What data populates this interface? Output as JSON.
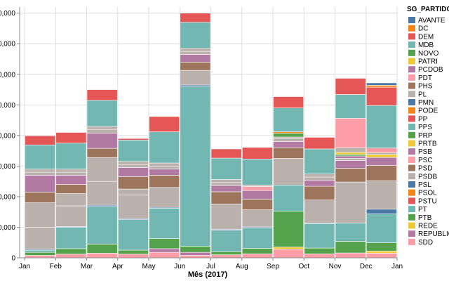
{
  "chart_data": {
    "type": "bar",
    "stacked": true,
    "xlabel": "Mês (2017)",
    "legend_title": "SG_PARTIDO",
    "legend_position": "right",
    "grid": true,
    "ylim": [
      0,
      82000
    ],
    "yticks": [
      0,
      10000,
      20000,
      30000,
      40000,
      50000,
      60000,
      70000,
      80000
    ],
    "ytick_labels": [
      "0",
      "0,000",
      "0,000",
      "0,000",
      "0,000",
      "0,000",
      "0,000",
      "0,000",
      "0,000"
    ],
    "months": [
      "Jan",
      "Feb",
      "Mar",
      "Apr",
      "May",
      "Jun",
      "Jul",
      "Aug",
      "Sep",
      "Oct",
      "Nov",
      "Dec"
    ],
    "x_labels": [
      "Jan",
      "Feb",
      "Mar",
      "Apr",
      "May",
      "Jun",
      "Jul",
      "Aug",
      "Sep",
      "Oct",
      "Nov",
      "Dec",
      "Jan"
    ],
    "parties": [
      {
        "name": "AVANTE",
        "color": "#4c78a8"
      },
      {
        "name": "DC",
        "color": "#f58518"
      },
      {
        "name": "DEM",
        "color": "#e45756"
      },
      {
        "name": "MDB",
        "color": "#72b7b2"
      },
      {
        "name": "NOVO",
        "color": "#54a24b"
      },
      {
        "name": "PATRI",
        "color": "#eeca3b"
      },
      {
        "name": "PCDOB",
        "color": "#b279a2"
      },
      {
        "name": "PDT",
        "color": "#ff9da6"
      },
      {
        "name": "PHS",
        "color": "#9d755d"
      },
      {
        "name": "PL",
        "color": "#bab0ac"
      },
      {
        "name": "PMN",
        "color": "#4c78a8"
      },
      {
        "name": "PODE",
        "color": "#f58518"
      },
      {
        "name": "PP",
        "color": "#e45756"
      },
      {
        "name": "PPS",
        "color": "#72b7b2"
      },
      {
        "name": "PRP",
        "color": "#54a24b"
      },
      {
        "name": "PRTB",
        "color": "#eeca3b"
      },
      {
        "name": "PSB",
        "color": "#b279a2"
      },
      {
        "name": "PSC",
        "color": "#ff9da6"
      },
      {
        "name": "PSD",
        "color": "#9d755d"
      },
      {
        "name": "PSDB",
        "color": "#bab0ac"
      },
      {
        "name": "PSL",
        "color": "#4c78a8"
      },
      {
        "name": "PSOL",
        "color": "#f58518"
      },
      {
        "name": "PSTU",
        "color": "#e45756"
      },
      {
        "name": "PT",
        "color": "#72b7b2"
      },
      {
        "name": "PTB",
        "color": "#54a24b"
      },
      {
        "name": "REDE",
        "color": "#eeca3b"
      },
      {
        "name": "REPUBLICANOS",
        "color": "#b279a2"
      },
      {
        "name": "SDD",
        "color": "#ff9da6"
      }
    ],
    "segments": [
      {
        "month": "Jan",
        "stack": [
          [
            "SDD",
            800
          ],
          [
            "PTB",
            1000
          ],
          [
            "PT",
            700
          ],
          [
            "PMN",
            300
          ],
          [
            "PSDB",
            7200
          ],
          [
            "PL",
            8000
          ],
          [
            "PHS",
            3500
          ],
          [
            "PSB",
            5500
          ],
          [
            "PL",
            1000
          ],
          [
            "PSDB",
            1000
          ],
          [
            "PPS",
            7900
          ],
          [
            "PP",
            3000
          ]
        ]
      },
      {
        "month": "Feb",
        "stack": [
          [
            "SDD",
            1200
          ],
          [
            "PTB",
            1800
          ],
          [
            "PT",
            7000
          ],
          [
            "PMN",
            200
          ],
          [
            "PSDB",
            6800
          ],
          [
            "PL",
            4000
          ],
          [
            "PHS",
            3000
          ],
          [
            "PSB",
            3000
          ],
          [
            "PL",
            1000
          ],
          [
            "PSDB",
            1000
          ],
          [
            "PPS",
            8500
          ],
          [
            "PP",
            3500
          ]
        ]
      },
      {
        "month": "Mar",
        "stack": [
          [
            "SDD",
            1500
          ],
          [
            "PTB",
            3000
          ],
          [
            "PT",
            12300
          ],
          [
            "PMN",
            400
          ],
          [
            "PSDB",
            7800
          ],
          [
            "PL",
            7800
          ],
          [
            "PHS",
            3000
          ],
          [
            "PSB",
            5000
          ],
          [
            "PL",
            1200
          ],
          [
            "PSDB",
            1000
          ],
          [
            "PPS",
            8500
          ],
          [
            "PP",
            3500
          ]
        ]
      },
      {
        "month": "Apr",
        "stack": [
          [
            "SDD",
            1200
          ],
          [
            "PTB",
            1300
          ],
          [
            "PT",
            10000
          ],
          [
            "PMN",
            300
          ],
          [
            "PSDB",
            7700
          ],
          [
            "PL",
            2000
          ],
          [
            "PHS",
            4000
          ],
          [
            "PSB",
            3000
          ],
          [
            "PL",
            1000
          ],
          [
            "PSDB",
            1000
          ],
          [
            "PPS",
            7000
          ],
          [
            "PP",
            500
          ]
        ]
      },
      {
        "month": "May",
        "stack": [
          [
            "SDD",
            1800
          ],
          [
            "PSB",
            1200
          ],
          [
            "PTB",
            3300
          ],
          [
            "PT",
            9900
          ],
          [
            "PMN",
            300
          ],
          [
            "PSDB",
            6500
          ],
          [
            "PHS",
            4000
          ],
          [
            "PSB",
            2000
          ],
          [
            "PL",
            1000
          ],
          [
            "PSDB",
            1000
          ],
          [
            "PPS",
            10200
          ],
          [
            "PP",
            5000
          ]
        ]
      },
      {
        "month": "Jun",
        "stack": [
          [
            "SDD",
            800
          ],
          [
            "PSB",
            1000
          ],
          [
            "PTB",
            2000
          ],
          [
            "PT",
            52200
          ],
          [
            "PMN",
            500
          ],
          [
            "PSDB",
            4800
          ],
          [
            "PHS",
            2700
          ],
          [
            "PSB",
            2500
          ],
          [
            "PL",
            1000
          ],
          [
            "PSDB",
            1000
          ],
          [
            "PPS",
            8500
          ],
          [
            "PP",
            3000
          ]
        ]
      },
      {
        "month": "Jul",
        "stack": [
          [
            "SDD",
            1000
          ],
          [
            "PTB",
            1000
          ],
          [
            "PT",
            7000
          ],
          [
            "PMN",
            300
          ],
          [
            "PSDB",
            8300
          ],
          [
            "PHS",
            4000
          ],
          [
            "PSB",
            2000
          ],
          [
            "PL",
            1000
          ],
          [
            "PSDB",
            1000
          ],
          [
            "PPS",
            7000
          ],
          [
            "PP",
            3000
          ]
        ]
      },
      {
        "month": "Aug",
        "stack": [
          [
            "SDD",
            1300
          ],
          [
            "PTB",
            1800
          ],
          [
            "PT",
            6700
          ],
          [
            "PMN",
            300
          ],
          [
            "PSDB",
            5600
          ],
          [
            "PHS",
            3500
          ],
          [
            "PSB",
            2800
          ],
          [
            "PSC",
            1300
          ],
          [
            "PL",
            500
          ],
          [
            "PPS",
            8500
          ],
          [
            "PP",
            3800
          ]
        ]
      },
      {
        "month": "Sep",
        "stack": [
          [
            "SDD",
            2800
          ],
          [
            "PATRI",
            700
          ],
          [
            "PTB",
            11800
          ],
          [
            "PT",
            8500
          ],
          [
            "PSDB",
            8700
          ],
          [
            "PHS",
            3500
          ],
          [
            "PSB",
            2000
          ],
          [
            "PL",
            1000
          ],
          [
            "PSDB",
            500
          ],
          [
            "NOVO",
            1200
          ],
          [
            "PODE",
            500
          ],
          [
            "PPS",
            7800
          ],
          [
            "PP",
            3700
          ]
        ]
      },
      {
        "month": "Oct",
        "stack": [
          [
            "SDD",
            1300
          ],
          [
            "PTB",
            1900
          ],
          [
            "PT",
            8000
          ],
          [
            "PMN",
            200
          ],
          [
            "PSDB",
            7500
          ],
          [
            "PHS",
            4500
          ],
          [
            "PSB",
            2000
          ],
          [
            "PL",
            1000
          ],
          [
            "PSDB",
            1000
          ],
          [
            "PPS",
            8200
          ],
          [
            "PP",
            3800
          ]
        ]
      },
      {
        "month": "Nov",
        "stack": [
          [
            "SDD",
            1600
          ],
          [
            "PTB",
            3800
          ],
          [
            "PT",
            6000
          ],
          [
            "PSDB",
            13400
          ],
          [
            "PHS",
            4500
          ],
          [
            "PSB",
            2500
          ],
          [
            "PL",
            700
          ],
          [
            "PCDOB",
            800
          ],
          [
            "NOVO",
            500
          ],
          [
            "PATRI",
            700
          ],
          [
            "PSDB",
            1500
          ],
          [
            "PSC",
            9600
          ],
          [
            "PPS",
            7800
          ],
          [
            "PP",
            5300
          ]
        ]
      },
      {
        "month": "Dec",
        "stack": [
          [
            "SDD",
            1500
          ],
          [
            "PATRI",
            700
          ],
          [
            "PTB",
            2700
          ],
          [
            "PT",
            9500
          ],
          [
            "PMN",
            1500
          ],
          [
            "PSDB",
            9300
          ],
          [
            "PHS",
            5000
          ],
          [
            "PSB",
            2600
          ],
          [
            "PRTB",
            1000
          ],
          [
            "PSDB",
            600
          ],
          [
            "PSC",
            1500
          ],
          [
            "PPS",
            13900
          ],
          [
            "PP",
            6000
          ],
          [
            "DC",
            600
          ],
          [
            "PMN",
            800
          ]
        ]
      }
    ]
  }
}
